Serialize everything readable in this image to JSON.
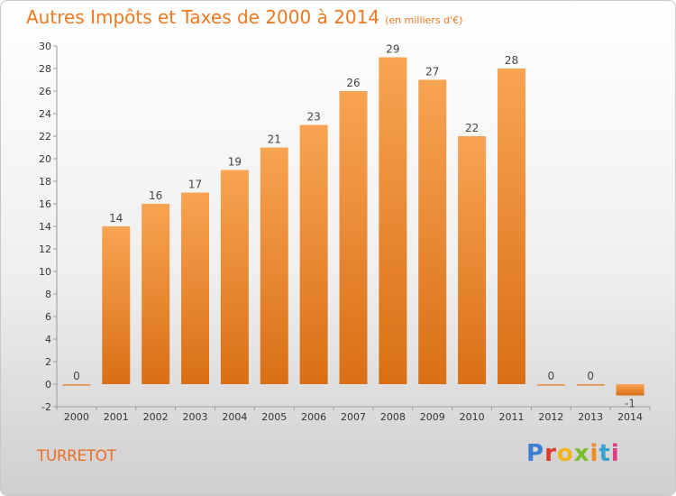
{
  "page": {
    "title": "Autres Impôts et Taxes de 2000 à 2014",
    "unit": "(en milliers d'€)",
    "commune": "TURRETOT",
    "logo": {
      "letters": [
        "P",
        "r",
        "o",
        "x",
        "i",
        "t",
        "i"
      ],
      "colors": [
        "#3a7fd0",
        "#e03a2a",
        "#f2b51c",
        "#7dbd2a",
        "#f08a1c",
        "#3aa0d0",
        "#e03a8a"
      ]
    }
  },
  "chart_data": {
    "type": "bar",
    "title": "Autres Impôts et Taxes de 2000 à 2014",
    "ylabel": "",
    "xlabel": "",
    "categories": [
      "2000",
      "2001",
      "2002",
      "2003",
      "2004",
      "2005",
      "2006",
      "2007",
      "2008",
      "2009",
      "2010",
      "2011",
      "2012",
      "2013",
      "2014"
    ],
    "values": [
      0,
      14,
      16,
      17,
      19,
      21,
      23,
      26,
      29,
      27,
      22,
      28,
      0,
      0,
      -1
    ],
    "data_labels": [
      "0",
      "14",
      "16",
      "17",
      "19",
      "21",
      "23",
      "26",
      "29",
      "27",
      "22",
      "28",
      "0",
      "0",
      "-1"
    ],
    "ylim": [
      -2,
      30
    ],
    "yticks": [
      -2,
      0,
      2,
      4,
      6,
      8,
      10,
      12,
      14,
      16,
      18,
      20,
      22,
      24,
      26,
      28,
      30
    ],
    "grid": false,
    "bar_color": "#f08a2c"
  }
}
